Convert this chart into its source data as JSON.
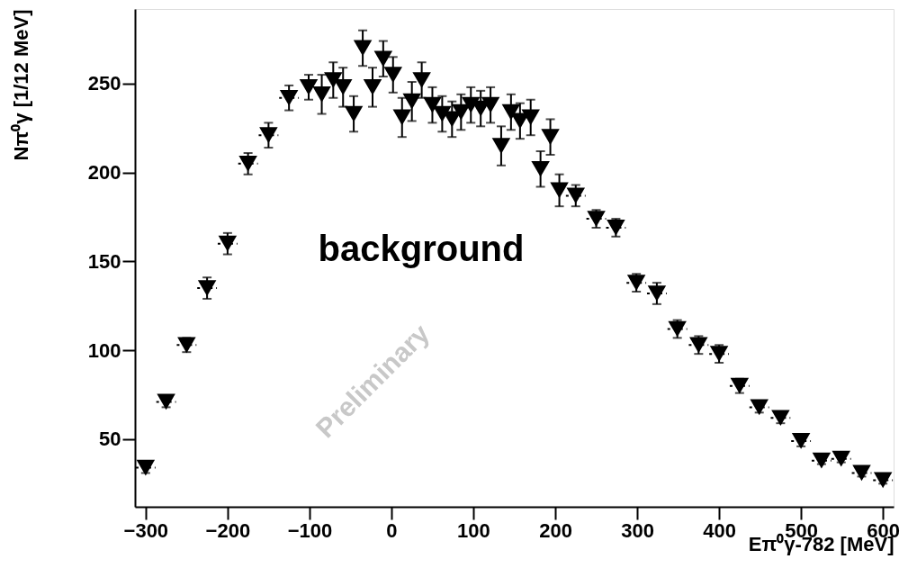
{
  "chart_data": {
    "type": "scatter",
    "xlabel": "Eπ⁰γ-782 [MeV]",
    "ylabel": "Nπ⁰γ [1/12 MeV]",
    "annotations": [
      "background",
      "Preliminary"
    ],
    "xlim": [
      -313,
      613
    ],
    "xticks": [
      -300,
      -200,
      -100,
      0,
      100,
      200,
      300,
      400,
      500,
      600
    ],
    "ylim": [
      12,
      292
    ],
    "yticks": [
      50,
      100,
      150,
      200,
      250
    ],
    "marker": "triangle",
    "grid": false,
    "series": [
      {
        "color": "#000000",
        "x": [
          -300,
          -275,
          -250,
          -225,
          -200,
          -175,
          -150,
          -125,
          -101,
          -85,
          -71,
          -59,
          -46,
          -35,
          -23,
          -10,
          2,
          13,
          25,
          37,
          50,
          62,
          74,
          85,
          97,
          109,
          121,
          134,
          146,
          157,
          170,
          182,
          194,
          205,
          225,
          250,
          274,
          299,
          324,
          349,
          375,
          400,
          425,
          449,
          475,
          500,
          525,
          549,
          574,
          600
        ],
        "values": [
          34,
          71,
          103,
          135,
          160,
          205,
          221,
          242,
          248,
          244,
          252,
          248,
          233,
          270,
          248,
          264,
          255,
          231,
          240,
          252,
          238,
          233,
          230,
          234,
          238,
          236,
          238,
          215,
          234,
          229,
          231,
          202,
          220,
          190,
          187,
          174,
          169,
          138,
          132,
          112,
          103,
          98,
          80,
          68,
          62,
          49,
          38,
          39,
          31,
          27
        ],
        "errors": [
          3,
          3,
          4,
          6,
          6,
          6,
          7,
          7,
          7,
          11,
          10,
          11,
          10,
          10,
          11,
          10,
          10,
          11,
          11,
          10,
          10,
          10,
          10,
          10,
          10,
          10,
          10,
          11,
          10,
          10,
          10,
          10,
          10,
          9,
          6,
          5,
          5,
          5,
          6,
          5,
          5,
          5,
          4,
          3,
          3,
          3,
          2,
          2,
          2,
          2
        ],
        "xerrors": [
          12,
          12,
          12,
          12,
          12,
          12,
          12,
          12,
          null,
          null,
          null,
          null,
          null,
          null,
          null,
          null,
          null,
          null,
          null,
          null,
          null,
          null,
          null,
          null,
          null,
          null,
          null,
          null,
          null,
          null,
          null,
          null,
          null,
          null,
          12,
          12,
          12,
          12,
          12,
          12,
          12,
          12,
          12,
          12,
          12,
          12,
          12,
          12,
          12,
          12
        ]
      }
    ]
  }
}
